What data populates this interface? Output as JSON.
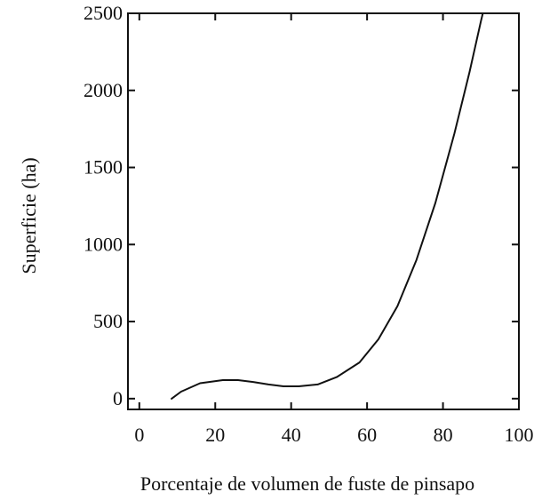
{
  "chart_data": {
    "type": "line",
    "title": "",
    "xlabel": "Porcentaje de volumen de fuste de pinsapo",
    "ylabel": "Superficie (ha)",
    "xlim": [
      -3,
      100
    ],
    "ylim": [
      -70,
      2500
    ],
    "xticks": [
      0,
      20,
      40,
      60,
      80,
      100
    ],
    "yticks": [
      0,
      500,
      1000,
      1500,
      2000,
      2500
    ],
    "grid": false,
    "legend": "none",
    "line_color": "#111111",
    "series": [
      {
        "x": [
          8.5,
          11,
          16,
          22,
          26,
          30,
          34,
          38,
          42,
          47,
          52,
          58,
          63,
          68,
          73,
          78,
          83,
          87,
          90,
          90.5
        ],
        "y": [
          0,
          45,
          100,
          120,
          120,
          108,
          92,
          80,
          80,
          92,
          140,
          235,
          385,
          600,
          900,
          1270,
          1720,
          2120,
          2450,
          2500
        ]
      }
    ]
  }
}
